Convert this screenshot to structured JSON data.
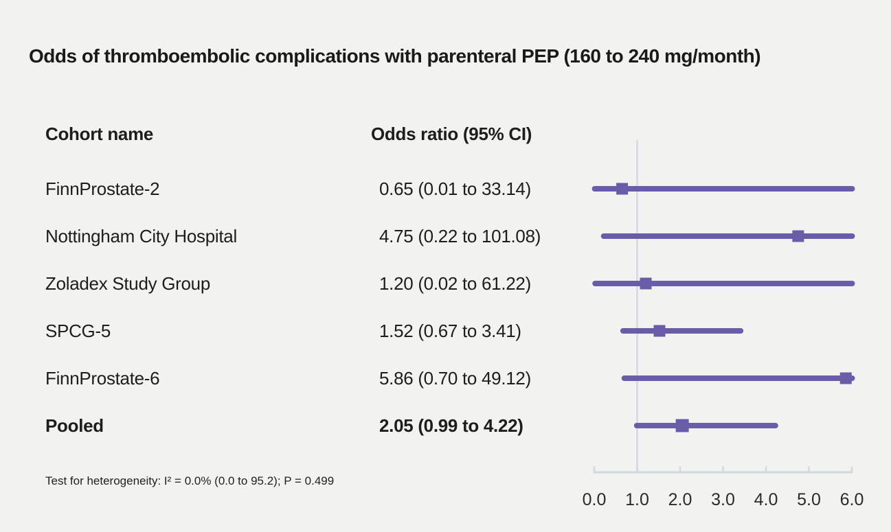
{
  "title": "Odds of thromboembolic complications with parenteral PEP (160 to 240 mg/month)",
  "table": {
    "headers": {
      "cohort": "Cohort name",
      "odds_ratio": "Odds ratio (95% CI)"
    }
  },
  "footnote": "Test for heterogeneity: I² = 0.0% (0.0 to 95.2); P = 0.499",
  "colors": {
    "background": "#f2f2f0",
    "text": "#1d1d1b",
    "marker_purple": "#6a5ca8",
    "axis_gray": "#d2d8e0",
    "refline_gray": "#d9dde3"
  },
  "chart_data": {
    "type": "forest",
    "title": "Odds of thromboembolic complications with parenteral PEP (160 to 240 mg/month)",
    "xlabel": "Odds ratio",
    "xlim": [
      0.0,
      6.0
    ],
    "tick_values": [
      0,
      1,
      2,
      3,
      4,
      5,
      6
    ],
    "tick_labels": [
      "0.0",
      "1.0",
      "2.0",
      "3.0",
      "4.0",
      "5.0",
      "6.0"
    ],
    "reference_line": 1.0,
    "legend_position": "none",
    "grid": false,
    "studies": [
      {
        "name": "FinnProstate-2",
        "or": 0.65,
        "ci_low": 0.01,
        "ci_high": 33.14,
        "label": "0.65 (0.01 to 33.14)",
        "pooled": false
      },
      {
        "name": "Nottingham City Hospital",
        "or": 4.75,
        "ci_low": 0.22,
        "ci_high": 101.08,
        "label": "4.75 (0.22 to 101.08)",
        "pooled": false
      },
      {
        "name": "Zoladex Study Group",
        "or": 1.2,
        "ci_low": 0.02,
        "ci_high": 61.22,
        "label": "1.20 (0.02 to 61.22)",
        "pooled": false
      },
      {
        "name": "SPCG-5",
        "or": 1.52,
        "ci_low": 0.67,
        "ci_high": 3.41,
        "label": "1.52 (0.67 to 3.41)",
        "pooled": false
      },
      {
        "name": "FinnProstate-6",
        "or": 5.86,
        "ci_low": 0.7,
        "ci_high": 49.12,
        "label": "5.86 (0.70 to 49.12)",
        "pooled": false
      },
      {
        "name": "Pooled",
        "or": 2.05,
        "ci_low": 0.99,
        "ci_high": 4.22,
        "label": "2.05 (0.99 to 4.22)",
        "pooled": true
      }
    ],
    "heterogeneity_note": "Test for heterogeneity: I² = 0.0% (0.0 to 95.2); P = 0.499"
  }
}
